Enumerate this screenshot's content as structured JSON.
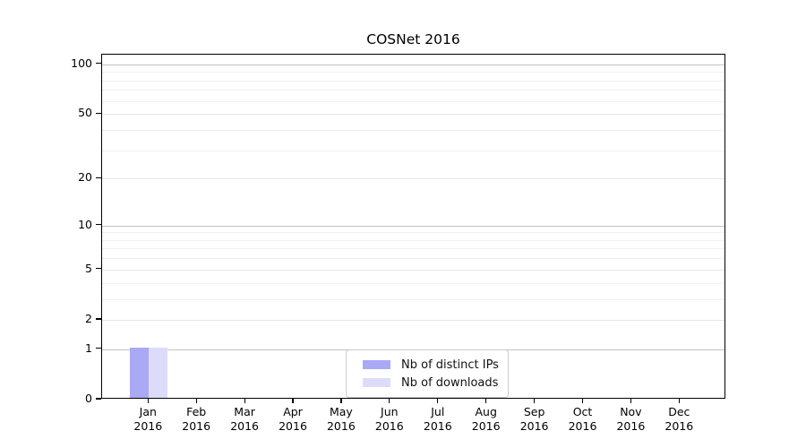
{
  "figure": {
    "background": "#ffffff"
  },
  "chart_data": {
    "type": "bar",
    "title": "COSNet 2016",
    "year": "2016",
    "x_months": [
      "Jan",
      "Feb",
      "Mar",
      "Apr",
      "May",
      "Jun",
      "Jul",
      "Aug",
      "Sep",
      "Oct",
      "Nov",
      "Dec"
    ],
    "categories": [
      "Jan 2016",
      "Feb 2016",
      "Mar 2016",
      "Apr 2016",
      "May 2016",
      "Jun 2016",
      "Jul 2016",
      "Aug 2016",
      "Sep 2016",
      "Oct 2016",
      "Nov 2016",
      "Dec 2016"
    ],
    "series": [
      {
        "name": "Nb of distinct IPs",
        "color": "#a9a9f5",
        "values": [
          1,
          0,
          0,
          0,
          0,
          0,
          0,
          0,
          0,
          0,
          0,
          0
        ]
      },
      {
        "name": "Nb of downloads",
        "color": "#dcdcfa",
        "values": [
          1,
          0,
          0,
          0,
          0,
          0,
          0,
          0,
          0,
          0,
          0,
          0
        ]
      }
    ],
    "y_axis": {
      "scale": "log1p",
      "ticks": [
        0,
        1,
        2,
        5,
        10,
        20,
        50,
        100
      ],
      "emphasized_ticks": [
        1,
        10,
        100
      ],
      "minor_ticks": [
        3,
        4,
        6,
        7,
        8,
        9,
        30,
        40,
        60,
        70,
        80,
        90
      ],
      "max": 114
    },
    "grid": true,
    "legend_position": "bottom-center",
    "colors": {
      "bar_distinct_ips": "#a9a9f5",
      "bar_downloads": "#dcdcfa",
      "grid_major": "#c4c4c4",
      "grid_light": "#e7e7e7",
      "grid_minor": "#f0f0f0",
      "axis_frame": "#000000",
      "text": "#000000",
      "legend_border": "#cccccc"
    }
  }
}
